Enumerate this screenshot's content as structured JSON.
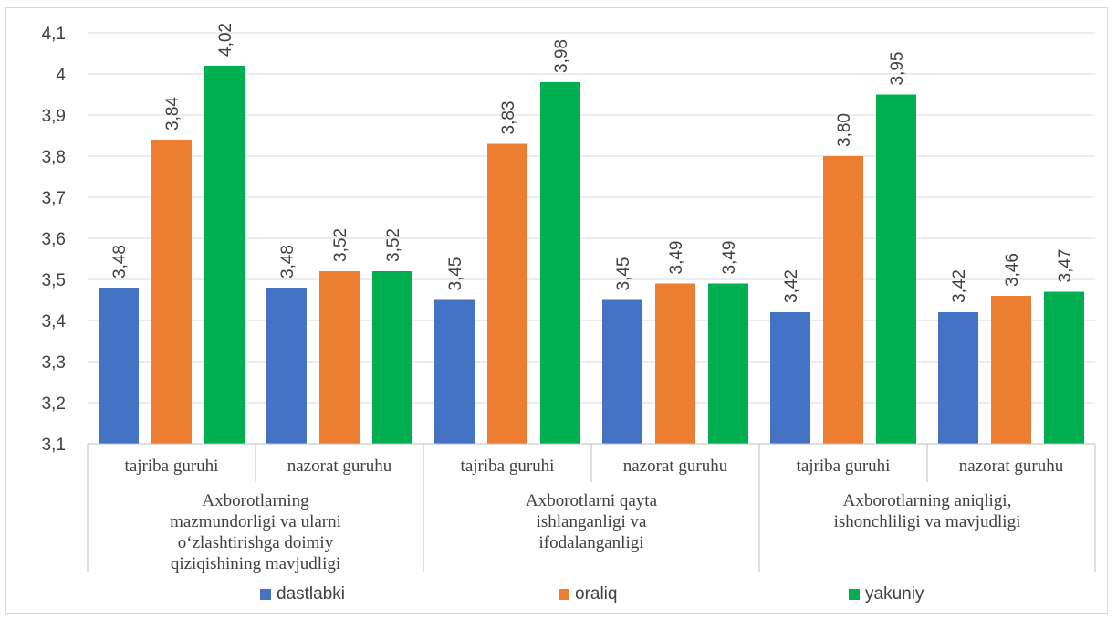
{
  "chart_data": {
    "type": "bar",
    "title": "",
    "ylim": [
      3.1,
      4.1
    ],
    "yticks": [
      "3,1",
      "3,2",
      "3,3",
      "3,4",
      "3,5",
      "3,6",
      "3,7",
      "3,8",
      "3,9",
      "4",
      "4,1"
    ],
    "grid": true,
    "legend_position": "bottom",
    "groups": [
      {
        "label_lines": [
          "Axborotlarning",
          "mazmundorligi  va ularni",
          "o‘zlashtirishga  doimiy",
          "qiziqishining  mavjudligi"
        ],
        "subcategories": [
          "tajriba guruhi",
          "nazorat guruhu"
        ]
      },
      {
        "label_lines": [
          "Axborotlarni qayta",
          "ishlanganligi va",
          "ifodalanganligi"
        ],
        "subcategories": [
          "tajriba guruhi",
          "nazorat guruhu"
        ]
      },
      {
        "label_lines": [
          "Axborotlarning aniqligi,",
          "ishonchliligi va mavjudligi"
        ],
        "subcategories": [
          "tajriba guruhi",
          "nazorat guruhu"
        ]
      }
    ],
    "series": [
      {
        "name": "dastlabki",
        "color": "#4472c4",
        "values": [
          3.48,
          3.48,
          3.45,
          3.45,
          3.42,
          3.42
        ],
        "labels": [
          "3,48",
          "3,48",
          "3,45",
          "3,45",
          "3,42",
          "3,42"
        ]
      },
      {
        "name": "oraliq",
        "color": "#ed7d31",
        "values": [
          3.84,
          3.52,
          3.83,
          3.49,
          3.8,
          3.46
        ],
        "labels": [
          "3,84",
          "3,52",
          "3,83",
          "3,49",
          "3,80",
          "3,46"
        ]
      },
      {
        "name": "yakuniy",
        "color": "#00b050",
        "values": [
          4.02,
          3.52,
          3.98,
          3.49,
          3.95,
          3.47
        ],
        "labels": [
          "4,02",
          "3,52",
          "3,98",
          "3,49",
          "3,95",
          "3,47"
        ]
      }
    ]
  }
}
